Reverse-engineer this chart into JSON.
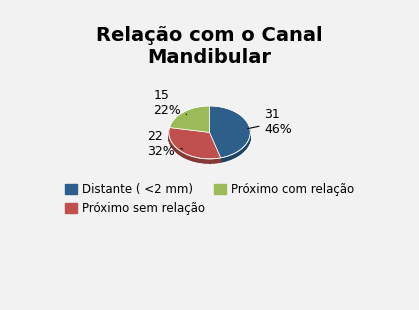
{
  "title": "Relação com o Canal\nMandibular",
  "slices": [
    31,
    22,
    15
  ],
  "labels": [
    "Distante ( <2 mm)",
    "Próximo sem relação",
    "Próximo com relação"
  ],
  "percentages": [
    "46%",
    "32%",
    "22%"
  ],
  "counts": [
    "31",
    "22",
    "15"
  ],
  "colors": [
    "#2e5f8a",
    "#c0504d",
    "#9bbb59"
  ],
  "legend_labels": [
    "Distante ( <2 mm)",
    "Próximo sem relação",
    "Próximo com relação"
  ],
  "startangle": 90,
  "background_color": "#f2f2f2",
  "title_fontsize": 14,
  "annotation_fontsize": 9,
  "legend_fontsize": 8.5
}
